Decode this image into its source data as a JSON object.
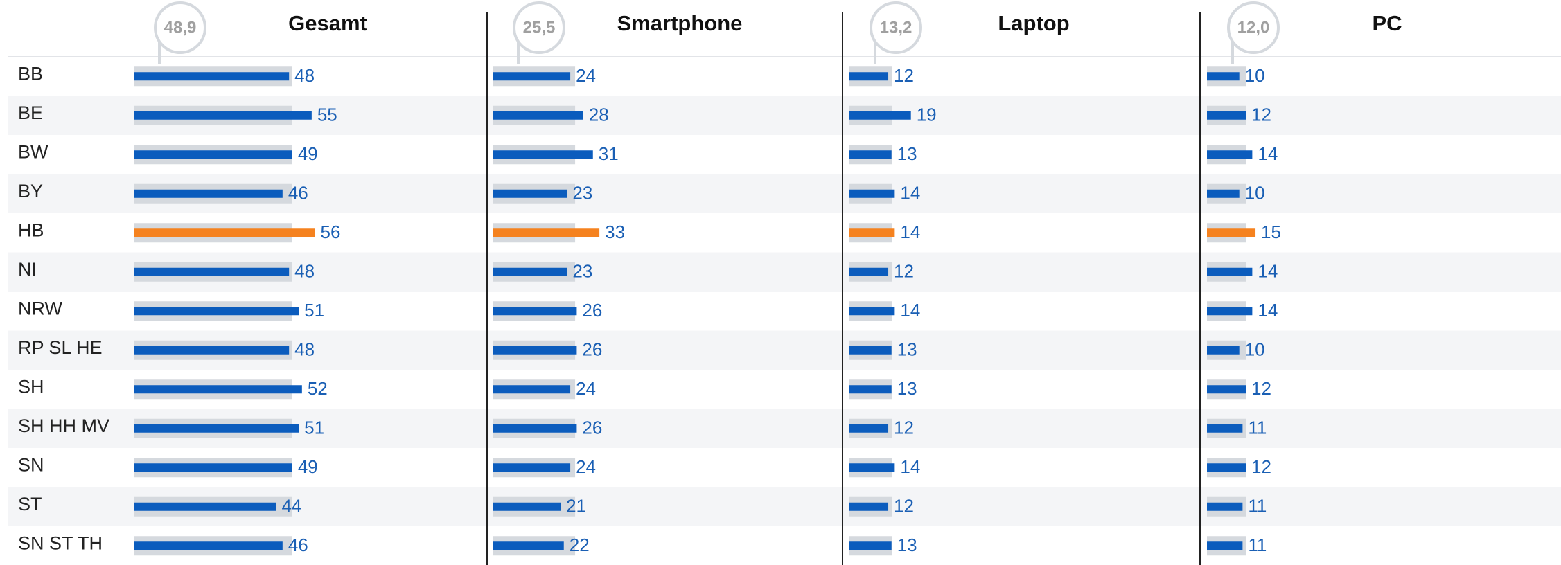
{
  "chart_data": {
    "type": "bar",
    "categories": [
      "BB",
      "BE",
      "BW",
      "BY",
      "HB",
      "NI",
      "NRW",
      "RP SL HE",
      "SH",
      "SH HH MV",
      "SN",
      "ST",
      "SN ST TH"
    ],
    "highlight": "HB",
    "color": "#0b5cbd",
    "highlight_color": "#f5821f",
    "average_color": "#d5d9de",
    "series": [
      {
        "name": "Gesamt",
        "average": {
          "value": 48.9,
          "label": "48,9"
        },
        "values": [
          48,
          55,
          49,
          46,
          56,
          48,
          51,
          48,
          52,
          51,
          49,
          44,
          46
        ]
      },
      {
        "name": "Smartphone",
        "average": {
          "value": 25.5,
          "label": "25,5"
        },
        "values": [
          24,
          28,
          31,
          23,
          33,
          23,
          26,
          26,
          24,
          26,
          24,
          21,
          22
        ]
      },
      {
        "name": "Laptop",
        "average": {
          "value": 13.2,
          "label": "13,2"
        },
        "values": [
          12,
          19,
          13,
          14,
          14,
          12,
          14,
          13,
          13,
          12,
          14,
          12,
          13
        ]
      },
      {
        "name": "PC",
        "average": {
          "value": 12.0,
          "label": "12,0"
        },
        "values": [
          10,
          12,
          14,
          10,
          15,
          14,
          14,
          10,
          12,
          11,
          12,
          11,
          11
        ]
      }
    ]
  }
}
